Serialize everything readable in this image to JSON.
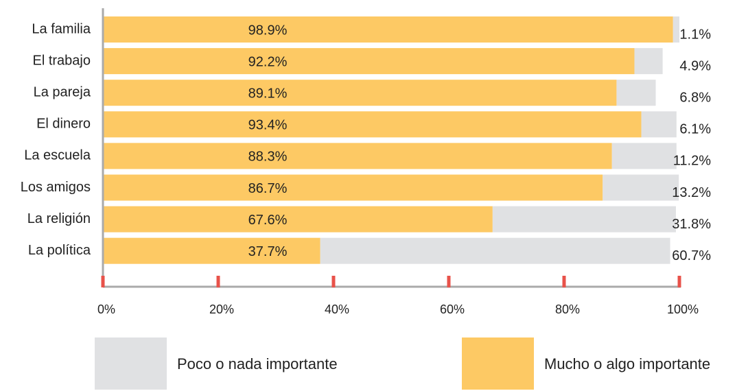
{
  "chart_data": {
    "type": "stacked-bar",
    "categories": [
      "La familia",
      "El trabajo",
      "La pareja",
      "El dinero",
      "La escuela",
      "Los amigos",
      "La religión",
      "La política"
    ],
    "series": [
      {
        "name": "Mucho o algo importante",
        "color": "#fdc964",
        "values": [
          98.9,
          92.2,
          89.1,
          93.4,
          88.3,
          86.7,
          67.6,
          37.7
        ],
        "value_labels": [
          "98.9%",
          "92.2%",
          "89.1%",
          "93.4%",
          "88.3%",
          "86.7%",
          "67.6%",
          "37.7%"
        ]
      },
      {
        "name": "Poco o nada importante",
        "color": "#e0e1e3",
        "values": [
          1.1,
          4.9,
          6.8,
          6.1,
          11.2,
          13.2,
          31.8,
          60.7
        ],
        "value_labels": [
          "1.1%",
          "4.9%",
          "6.8%",
          "6.1%",
          "11.2%",
          "13.2%",
          "31.8%",
          "60.7%"
        ]
      }
    ],
    "xlim": [
      0,
      100
    ],
    "xticks": [
      {
        "value": 0,
        "label": "0%"
      },
      {
        "value": 20,
        "label": "20%"
      },
      {
        "value": 40,
        "label": "40%"
      },
      {
        "value": 60,
        "label": "60%"
      },
      {
        "value": 80,
        "label": "80%"
      },
      {
        "value": 100,
        "label": "100%"
      }
    ],
    "tick_color": "#e8524a"
  }
}
